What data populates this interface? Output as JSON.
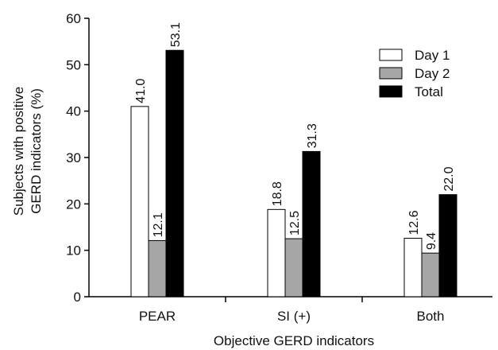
{
  "chart_data": {
    "type": "bar",
    "categories": [
      "PEAR",
      "SI (+)",
      "Both"
    ],
    "series": [
      {
        "name": "Day 1",
        "values": [
          41.0,
          18.8,
          12.6
        ],
        "color": "#ffffff"
      },
      {
        "name": "Day 2",
        "values": [
          12.1,
          12.5,
          9.4
        ],
        "color": "#a6a6a6"
      },
      {
        "name": "Total",
        "values": [
          53.1,
          31.3,
          22.0
        ],
        "color": "#000000"
      }
    ],
    "data_labels": [
      [
        "41.0",
        "18.8",
        "12.6"
      ],
      [
        "12.1",
        "12.5",
        "9.4"
      ],
      [
        "53.1",
        "31.3",
        "22.0"
      ]
    ],
    "xlabel": "Objective GERD indicators",
    "ylabel_lines": [
      "Subjects with positive",
      "GERD indicators (%)"
    ],
    "ylim": [
      0,
      60
    ],
    "yticks": [
      0,
      10,
      20,
      30,
      40,
      50,
      60
    ],
    "grid": false,
    "legend_position": "top-right"
  }
}
